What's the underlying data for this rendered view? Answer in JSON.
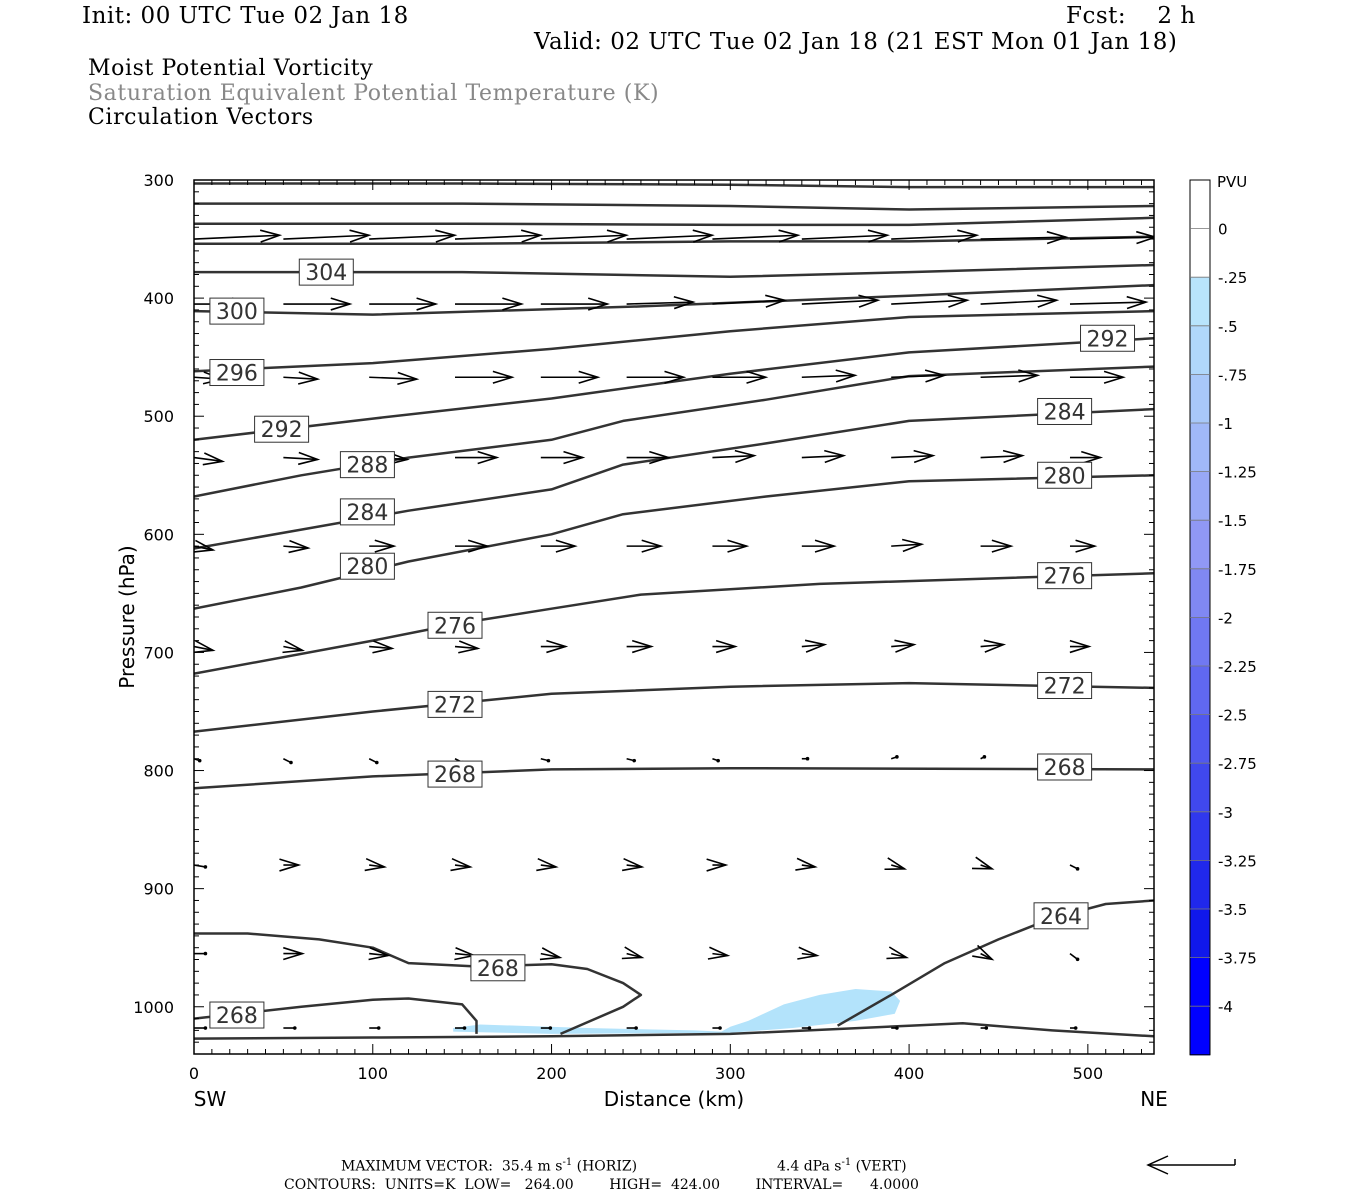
{
  "header": {
    "init": "Init: 00 UTC Tue 02 Jan 18",
    "fcst": "Fcst:    2 h",
    "valid": "Valid: 02 UTC Tue 02 Jan 18 (21 EST Mon 01 Jan 18)",
    "fields": [
      "Moist Potential Vorticity",
      "Saturation Equivalent Potential Temperature (K)",
      "Circulation Vectors"
    ]
  },
  "colors": {
    "contour": "#333333",
    "pv_light": "#b3e3fb",
    "pv_lighter": "#c6ebfd",
    "colorbar": [
      "#ffffff",
      "#ffffff",
      "#b8e4fc",
      "#b0d8fb",
      "#a8c8f9",
      "#a0b8f8",
      "#98a8f6",
      "#9098f5",
      "#8088f3",
      "#7078f2",
      "#6068f1",
      "#5058ef",
      "#4048ee",
      "#3038ed",
      "#2028ec",
      "#1018eb",
      "#0000ff",
      "#0000ff"
    ]
  },
  "chart_data": {
    "type": "cross-section",
    "xlabel": "Distance (km)",
    "ylabel": "Pressure (hPa)",
    "xlim": [
      0,
      537
    ],
    "ylim": [
      300,
      1040
    ],
    "x_ticks": [
      0,
      100,
      200,
      300,
      400,
      500
    ],
    "y_ticks": [
      300,
      400,
      500,
      600,
      700,
      800,
      900,
      1000
    ],
    "x_end_labels": {
      "left": "SW",
      "right": "NE"
    },
    "colorbar": {
      "title": "PVU",
      "labels": [
        "0",
        "-.25",
        "-.5",
        "-.75",
        "-1",
        "-1.25",
        "-1.5",
        "-1.75",
        "-2",
        "-2.25",
        "-2.5",
        "-2.75",
        "-3",
        "-3.25",
        "-3.5",
        "-3.75",
        "-4"
      ]
    },
    "contours": [
      {
        "points": [
          [
            0,
            303
          ],
          [
            150,
            303
          ],
          [
            300,
            304
          ],
          [
            400,
            306
          ],
          [
            537,
            306
          ]
        ]
      },
      {
        "points": [
          [
            0,
            320
          ],
          [
            150,
            320
          ],
          [
            300,
            322
          ],
          [
            400,
            325
          ],
          [
            537,
            322
          ]
        ]
      },
      {
        "points": [
          [
            0,
            337
          ],
          [
            150,
            337
          ],
          [
            300,
            338
          ],
          [
            400,
            338
          ],
          [
            537,
            332
          ]
        ]
      },
      {
        "points": [
          [
            0,
            354
          ],
          [
            150,
            354
          ],
          [
            300,
            352
          ],
          [
            400,
            352
          ],
          [
            537,
            348
          ]
        ]
      },
      {
        "points": [
          [
            0,
            378
          ],
          [
            150,
            378
          ],
          [
            300,
            382
          ],
          [
            400,
            378
          ],
          [
            537,
            372
          ]
        ]
      },
      {
        "points": [
          [
            0,
            411
          ],
          [
            100,
            414
          ],
          [
            250,
            407
          ],
          [
            400,
            398
          ],
          [
            537,
            389
          ]
        ]
      },
      {
        "points": [
          [
            0,
            462
          ],
          [
            100,
            455
          ],
          [
            200,
            443
          ],
          [
            300,
            428
          ],
          [
            400,
            416
          ],
          [
            537,
            411
          ]
        ]
      },
      {
        "points": [
          [
            0,
            520
          ],
          [
            100,
            502
          ],
          [
            200,
            485
          ],
          [
            300,
            464
          ],
          [
            400,
            446
          ],
          [
            537,
            434
          ]
        ]
      },
      {
        "points": [
          [
            0,
            568
          ],
          [
            60,
            550
          ],
          [
            120,
            535
          ],
          [
            200,
            520
          ],
          [
            240,
            504
          ],
          [
            320,
            486
          ],
          [
            400,
            466
          ],
          [
            537,
            458
          ]
        ]
      },
      {
        "points": [
          [
            0,
            612
          ],
          [
            60,
            596
          ],
          [
            120,
            580
          ],
          [
            200,
            562
          ],
          [
            240,
            541
          ],
          [
            320,
            523
          ],
          [
            400,
            504
          ],
          [
            537,
            494
          ]
        ]
      },
      {
        "points": [
          [
            0,
            663
          ],
          [
            60,
            645
          ],
          [
            120,
            623
          ],
          [
            200,
            600
          ],
          [
            240,
            583
          ],
          [
            320,
            568
          ],
          [
            400,
            555
          ],
          [
            537,
            550
          ]
        ]
      },
      {
        "points": [
          [
            0,
            718
          ],
          [
            100,
            690
          ],
          [
            150,
            675
          ],
          [
            200,
            663
          ],
          [
            250,
            651
          ],
          [
            350,
            642
          ],
          [
            537,
            633
          ]
        ]
      },
      {
        "points": [
          [
            0,
            767
          ],
          [
            100,
            750
          ],
          [
            200,
            735
          ],
          [
            300,
            729
          ],
          [
            400,
            726
          ],
          [
            537,
            730
          ]
        ]
      },
      {
        "points": [
          [
            0,
            815
          ],
          [
            100,
            805
          ],
          [
            200,
            799
          ],
          [
            300,
            798
          ],
          [
            537,
            799
          ]
        ]
      },
      {
        "points": [
          [
            0,
            1027
          ],
          [
            100,
            1026
          ],
          [
            200,
            1025
          ],
          [
            300,
            1023
          ],
          [
            400,
            1016
          ],
          [
            430,
            1014
          ],
          [
            480,
            1020
          ],
          [
            537,
            1025
          ]
        ]
      },
      {
        "points": [
          [
            0,
            1010
          ],
          [
            60,
            1000
          ],
          [
            100,
            994
          ],
          [
            120,
            993
          ],
          [
            150,
            998
          ],
          [
            158,
            1012
          ],
          [
            158,
            1023
          ]
        ]
      },
      {
        "points": [
          [
            0,
            938
          ],
          [
            30,
            938
          ],
          [
            70,
            943
          ],
          [
            100,
            950
          ],
          [
            120,
            963
          ],
          [
            160,
            966
          ],
          [
            200,
            964
          ],
          [
            220,
            968
          ],
          [
            240,
            980
          ],
          [
            250,
            990
          ],
          [
            240,
            1000
          ],
          [
            205,
            1023
          ]
        ]
      },
      {
        "points": [
          [
            360,
            1016
          ],
          [
            390,
            990
          ],
          [
            420,
            963
          ],
          [
            450,
            943
          ],
          [
            480,
            925
          ],
          [
            510,
            913
          ],
          [
            537,
            910
          ]
        ]
      }
    ],
    "contour_labels": [
      {
        "text": "304",
        "x": 74,
        "p": 378
      },
      {
        "text": "300",
        "x": 24,
        "p": 411
      },
      {
        "text": "296",
        "x": 24,
        "p": 463
      },
      {
        "text": "292",
        "x": 49,
        "p": 511
      },
      {
        "text": "292",
        "x": 511,
        "p": 434
      },
      {
        "text": "288",
        "x": 97,
        "p": 541
      },
      {
        "text": "284",
        "x": 97,
        "p": 581
      },
      {
        "text": "284",
        "x": 487,
        "p": 496
      },
      {
        "text": "280",
        "x": 97,
        "p": 627
      },
      {
        "text": "280",
        "x": 487,
        "p": 550
      },
      {
        "text": "276",
        "x": 146,
        "p": 677
      },
      {
        "text": "276",
        "x": 487,
        "p": 635
      },
      {
        "text": "272",
        "x": 146,
        "p": 744
      },
      {
        "text": "272",
        "x": 487,
        "p": 728
      },
      {
        "text": "268",
        "x": 146,
        "p": 803
      },
      {
        "text": "268",
        "x": 487,
        "p": 797
      },
      {
        "text": "268",
        "x": 170,
        "p": 967
      },
      {
        "text": "268",
        "x": 24,
        "p": 1007
      },
      {
        "text": "264",
        "x": 485,
        "p": 923
      }
    ],
    "pv_shading": [
      {
        "level": -0.25,
        "points": [
          [
            145,
            1018
          ],
          [
            160,
            1015
          ],
          [
            220,
            1018
          ],
          [
            280,
            1020
          ],
          [
            295,
            1021
          ],
          [
            300,
            1017
          ],
          [
            310,
            1012
          ],
          [
            330,
            998
          ],
          [
            350,
            990
          ],
          [
            370,
            985
          ],
          [
            390,
            987
          ],
          [
            395,
            995
          ],
          [
            392,
            1006
          ],
          [
            370,
            1012
          ],
          [
            335,
            1018
          ],
          [
            300,
            1022
          ],
          [
            200,
            1023
          ],
          [
            145,
            1021
          ]
        ]
      }
    ],
    "vector_rows": [
      {
        "p": 350,
        "x": [
          0,
          50,
          98,
          146,
          194,
          242,
          290,
          340,
          390,
          440,
          490,
          537
        ],
        "u": [
          45,
          45,
          45,
          45,
          45,
          45,
          45,
          45,
          45,
          45,
          45,
          30
        ],
        "v": [
          -2,
          -2,
          -2,
          -2,
          -2,
          -2,
          -2,
          -2,
          -2,
          -1,
          -1,
          -1
        ]
      },
      {
        "p": 405,
        "x": [
          0,
          50,
          98,
          146,
          194,
          242,
          290,
          340,
          390,
          440,
          490
        ],
        "u": [
          30,
          35,
          35,
          35,
          35,
          35,
          38,
          40,
          40,
          40,
          40
        ],
        "v": [
          0,
          0,
          0,
          0,
          0,
          -1,
          -2,
          -2,
          -2,
          -2,
          -1
        ]
      },
      {
        "p": 467,
        "x": [
          0,
          50,
          98,
          146,
          194,
          242,
          290,
          340,
          390,
          440,
          490
        ],
        "u": [
          15,
          18,
          25,
          30,
          30,
          30,
          28,
          28,
          28,
          30,
          28
        ],
        "v": [
          1,
          1,
          1,
          0,
          0,
          0,
          0,
          -1,
          -1,
          -1,
          0
        ]
      },
      {
        "p": 535,
        "x": [
          0,
          50,
          98,
          146,
          194,
          242,
          290,
          340,
          390,
          440,
          490
        ],
        "u": [
          15,
          18,
          20,
          22,
          22,
          22,
          22,
          22,
          22,
          22,
          16
        ],
        "v": [
          2,
          1,
          1,
          0,
          0,
          0,
          -1,
          -1,
          -1,
          -1,
          0
        ]
      },
      {
        "p": 610,
        "x": [
          0,
          50,
          98,
          146,
          194,
          242,
          290,
          340,
          390,
          440,
          490
        ],
        "u": [
          10,
          13,
          13,
          17,
          18,
          18,
          18,
          17,
          16,
          16,
          13
        ],
        "v": [
          2,
          1,
          0,
          0,
          0,
          0,
          0,
          0,
          -1,
          0,
          0
        ]
      },
      {
        "p": 695,
        "x": [
          0,
          50,
          98,
          146,
          194,
          242,
          290,
          340,
          390,
          440,
          490
        ],
        "u": [
          10,
          10,
          12,
          12,
          13,
          13,
          12,
          12,
          12,
          12,
          10
        ],
        "v": [
          2,
          2,
          1,
          1,
          0,
          0,
          0,
          -1,
          -1,
          -1,
          0
        ]
      },
      {
        "p": 790,
        "x": [
          0,
          50,
          98,
          146,
          194,
          242,
          290,
          340,
          390,
          440,
          490
        ],
        "u": [
          3,
          4,
          4,
          4,
          4,
          4,
          3,
          3,
          3,
          2,
          2
        ],
        "v": [
          1,
          2,
          2,
          2,
          1,
          1,
          1,
          0,
          -1,
          -1,
          -1
        ]
      },
      {
        "p": 880,
        "x": [
          0,
          50,
          98,
          146,
          194,
          242,
          290,
          340,
          390,
          440,
          490
        ],
        "u": [
          6,
          8,
          8,
          8,
          8,
          8,
          7,
          7,
          7,
          6,
          4
        ],
        "v": [
          1,
          0,
          1,
          1,
          1,
          1,
          0,
          1,
          2,
          2,
          2
        ]
      },
      {
        "p": 955,
        "x": [
          0,
          50,
          98,
          146,
          194,
          242,
          290,
          340,
          390,
          440,
          490
        ],
        "u": [
          6,
          10,
          10,
          10,
          10,
          8,
          8,
          8,
          8,
          6,
          4
        ],
        "v": [
          0,
          0,
          1,
          1,
          2,
          2,
          1,
          1,
          2,
          3,
          3
        ]
      },
      {
        "p": 1018,
        "x": [
          0,
          50,
          98,
          146,
          194,
          242,
          290,
          340,
          390,
          440,
          490
        ],
        "u": [
          6,
          6,
          5,
          5,
          5,
          5,
          4,
          4,
          3,
          3,
          3
        ],
        "v": [
          0,
          0,
          0,
          0,
          0,
          0,
          0,
          0,
          0,
          0,
          0
        ]
      }
    ]
  },
  "footer": {
    "max_vector_label": "MAXIMUM VECTOR:",
    "max_vector_horiz": "35.4 m s",
    "horiz_exp": "-1",
    "horiz_tag": " (HORIZ)",
    "max_vector_vert": "4.4 dPa s",
    "vert_exp": "-1",
    "vert_tag": " (VERT)",
    "contours_line": "CONTOURS:  UNITS=K  LOW=   264.00        HIGH=  424.00        INTERVAL=      4.0000"
  }
}
